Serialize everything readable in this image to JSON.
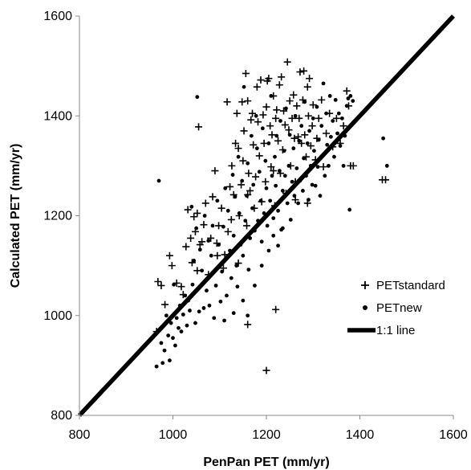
{
  "chart_data": {
    "type": "scatter",
    "xlabel": "PenPan PET (mm/yr)",
    "ylabel": "Calculated PET (mm/yr)",
    "xlim": [
      800,
      1600
    ],
    "ylim": [
      800,
      1600
    ],
    "x_ticks": [
      "800",
      "1000",
      "1200",
      "1400",
      "1600"
    ],
    "y_ticks": [
      "800",
      "1000",
      "1200",
      "1400",
      "1600"
    ],
    "grid": false,
    "legend_position": "bottom-right",
    "legend": [
      "PETstandard",
      "PETnew",
      "1:1 line"
    ],
    "series": [
      {
        "name": "PETstandard",
        "marker": "plus",
        "color": "#000000",
        "points": [
          [
            965,
            968
          ],
          [
            968,
            1068
          ],
          [
            975,
            1060
          ],
          [
            983,
            1022
          ],
          [
            993,
            1120
          ],
          [
            998,
            1100
          ],
          [
            1008,
            1065
          ],
          [
            1018,
            1058
          ],
          [
            1022,
            1042
          ],
          [
            1028,
            1138
          ],
          [
            1032,
            1212
          ],
          [
            1038,
            1155
          ],
          [
            1041,
            1106
          ],
          [
            1045,
            1198
          ],
          [
            1048,
            1168
          ],
          [
            1052,
            1205
          ],
          [
            1055,
            1378
          ],
          [
            1058,
            1142
          ],
          [
            1062,
            1148
          ],
          [
            1066,
            1182
          ],
          [
            1070,
            1225
          ],
          [
            1076,
            1082
          ],
          [
            1081,
            1155
          ],
          [
            1085,
            1238
          ],
          [
            1090,
            1290
          ],
          [
            1094,
            1145
          ],
          [
            1098,
            1180
          ],
          [
            1104,
            1215
          ],
          [
            1108,
            1095
          ],
          [
            1111,
            1122
          ],
          [
            1116,
            1428
          ],
          [
            1118,
            1168
          ],
          [
            1122,
            1258
          ],
          [
            1126,
            1300
          ],
          [
            1130,
            1242
          ],
          [
            1134,
            1345
          ],
          [
            1137,
            1405
          ],
          [
            1140,
            1335
          ],
          [
            1142,
            1200
          ],
          [
            1146,
            1262
          ],
          [
            1148,
            1428
          ],
          [
            1150,
            1310
          ],
          [
            1152,
            1370
          ],
          [
            1156,
            1485
          ],
          [
            1158,
            1180
          ],
          [
            1160,
            1430
          ],
          [
            1162,
            1285
          ],
          [
            1165,
            1250
          ],
          [
            1167,
            1392
          ],
          [
            1170,
            1405
          ],
          [
            1172,
            1342
          ],
          [
            1174,
            1215
          ],
          [
            1177,
            1278
          ],
          [
            1180,
            1458
          ],
          [
            1182,
            1388
          ],
          [
            1185,
            1320
          ],
          [
            1188,
            1472
          ],
          [
            1190,
            1228
          ],
          [
            1193,
            1402
          ],
          [
            1195,
            1345
          ],
          [
            1198,
            1268
          ],
          [
            1200,
            1418
          ],
          [
            1202,
            1470
          ],
          [
            1205,
            1475
          ],
          [
            1208,
            1380
          ],
          [
            1210,
            1298
          ],
          [
            1212,
            1362
          ],
          [
            1215,
            1440
          ],
          [
            1218,
            1220
          ],
          [
            1220,
            1395
          ],
          [
            1222,
            1412
          ],
          [
            1225,
            1350
          ],
          [
            1228,
            1462
          ],
          [
            1230,
            1285
          ],
          [
            1232,
            1478
          ],
          [
            1235,
            1332
          ],
          [
            1237,
            1410
          ],
          [
            1240,
            1382
          ],
          [
            1242,
            1245
          ],
          [
            1245,
            1508
          ],
          [
            1248,
            1372
          ],
          [
            1250,
            1430
          ],
          [
            1252,
            1300
          ],
          [
            1255,
            1395
          ],
          [
            1258,
            1442
          ],
          [
            1260,
            1355
          ],
          [
            1262,
            1268
          ],
          [
            1265,
            1420
          ],
          [
            1268,
            1358
          ],
          [
            1270,
            1395
          ],
          [
            1272,
            1488
          ],
          [
            1275,
            1345
          ],
          [
            1278,
            1432
          ],
          [
            1280,
            1490
          ],
          [
            1282,
            1362
          ],
          [
            1285,
            1318
          ],
          [
            1288,
            1458
          ],
          [
            1290,
            1400
          ],
          [
            1292,
            1475
          ],
          [
            1295,
            1340
          ],
          [
            1298,
            1380
          ],
          [
            1300,
            1422
          ],
          [
            1305,
            1312
          ],
          [
            1308,
            1355
          ],
          [
            1312,
            1395
          ],
          [
            1318,
            1432
          ],
          [
            1322,
            1298
          ],
          [
            1328,
            1365
          ],
          [
            1335,
            1405
          ],
          [
            1342,
            1338
          ],
          [
            1350,
            1395
          ],
          [
            1358,
            1345
          ],
          [
            1365,
            1380
          ],
          [
            1372,
            1450
          ],
          [
            1376,
            1420
          ],
          [
            1380,
            1300
          ],
          [
            1386,
            1300
          ],
          [
            1448,
            1272
          ],
          [
            1455,
            1272
          ],
          [
            1200,
            890
          ],
          [
            1220,
            1012
          ],
          [
            1160,
            982
          ],
          [
            1140,
            1105
          ],
          [
            1095,
            1120
          ],
          [
            1215,
            1290
          ],
          [
            1262,
            1232
          ],
          [
            1288,
            1225
          ],
          [
            1160,
            1242
          ],
          [
            1125,
            1192
          ],
          [
            1052,
            1090
          ]
        ]
      },
      {
        "name": "PETnew",
        "marker": "dot",
        "color": "#000000",
        "points": [
          [
            965,
            898
          ],
          [
            970,
            1270
          ],
          [
            975,
            945
          ],
          [
            978,
            905
          ],
          [
            982,
            930
          ],
          [
            986,
            1000
          ],
          [
            990,
            960
          ],
          [
            993,
            910
          ],
          [
            996,
            985
          ],
          [
            1000,
            955
          ],
          [
            1002,
            1062
          ],
          [
            1005,
            940
          ],
          [
            1008,
            995
          ],
          [
            1012,
            975
          ],
          [
            1015,
            1020
          ],
          [
            1018,
            968
          ],
          [
            1022,
            1002
          ],
          [
            1026,
            1040
          ],
          [
            1030,
            980
          ],
          [
            1033,
            1030
          ],
          [
            1036,
            1010
          ],
          [
            1040,
            1218
          ],
          [
            1042,
            1062
          ],
          [
            1045,
            1110
          ],
          [
            1048,
            985
          ],
          [
            1050,
            1175
          ],
          [
            1052,
            1438
          ],
          [
            1056,
            1008
          ],
          [
            1058,
            1132
          ],
          [
            1062,
            1090
          ],
          [
            1066,
            1015
          ],
          [
            1068,
            1200
          ],
          [
            1072,
            1050
          ],
          [
            1076,
            1150
          ],
          [
            1078,
            1020
          ],
          [
            1082,
            1120
          ],
          [
            1085,
            1180
          ],
          [
            1088,
            995
          ],
          [
            1092,
            1060
          ],
          [
            1095,
            1230
          ],
          [
            1098,
            1142
          ],
          [
            1102,
            1028
          ],
          [
            1105,
            1088
          ],
          [
            1108,
            1178
          ],
          [
            1112,
            1255
          ],
          [
            1115,
            1040
          ],
          [
            1118,
            1210
          ],
          [
            1122,
            1130
          ],
          [
            1125,
            1075
          ],
          [
            1128,
            1282
          ],
          [
            1130,
            1160
          ],
          [
            1133,
            1238
          ],
          [
            1136,
            1100
          ],
          [
            1138,
            1058
          ],
          [
            1140,
            1318
          ],
          [
            1142,
            1205
          ],
          [
            1145,
            1142
          ],
          [
            1148,
            1270
          ],
          [
            1150,
            1120
          ],
          [
            1152,
            1458
          ],
          [
            1155,
            1190
          ],
          [
            1158,
            1240
          ],
          [
            1160,
            1305
          ],
          [
            1162,
            1092
          ],
          [
            1165,
            1155
          ],
          [
            1168,
            1360
          ],
          [
            1170,
            1215
          ],
          [
            1172,
            1262
          ],
          [
            1175,
            1170
          ],
          [
            1178,
            1400
          ],
          [
            1180,
            1335
          ],
          [
            1182,
            1190
          ],
          [
            1185,
            1288
          ],
          [
            1188,
            1230
          ],
          [
            1190,
            1148
          ],
          [
            1192,
            1375
          ],
          [
            1195,
            1205
          ],
          [
            1198,
            1310
          ],
          [
            1200,
            1255
          ],
          [
            1202,
            1180
          ],
          [
            1205,
            1345
          ],
          [
            1208,
            1230
          ],
          [
            1210,
            1440
          ],
          [
            1212,
            1280
          ],
          [
            1215,
            1195
          ],
          [
            1218,
            1318
          ],
          [
            1220,
            1260
          ],
          [
            1222,
            1360
          ],
          [
            1225,
            1210
          ],
          [
            1228,
            1290
          ],
          [
            1230,
            1390
          ],
          [
            1232,
            1172
          ],
          [
            1235,
            1250
          ],
          [
            1238,
            1330
          ],
          [
            1240,
            1280
          ],
          [
            1242,
            1415
          ],
          [
            1245,
            1225
          ],
          [
            1248,
            1300
          ],
          [
            1250,
            1362
          ],
          [
            1252,
            1192
          ],
          [
            1255,
            1268
          ],
          [
            1258,
            1335
          ],
          [
            1260,
            1240
          ],
          [
            1262,
            1400
          ],
          [
            1265,
            1295
          ],
          [
            1268,
            1225
          ],
          [
            1270,
            1350
          ],
          [
            1272,
            1270
          ],
          [
            1275,
            1380
          ],
          [
            1278,
            1250
          ],
          [
            1280,
            1315
          ],
          [
            1282,
            1428
          ],
          [
            1285,
            1280
          ],
          [
            1288,
            1345
          ],
          [
            1290,
            1232
          ],
          [
            1292,
            1370
          ],
          [
            1295,
            1300
          ],
          [
            1298,
            1262
          ],
          [
            1300,
            1395
          ],
          [
            1302,
            1330
          ],
          [
            1305,
            1260
          ],
          [
            1308,
            1418
          ],
          [
            1310,
            1298
          ],
          [
            1312,
            1352
          ],
          [
            1315,
            1240
          ],
          [
            1318,
            1380
          ],
          [
            1320,
            1320
          ],
          [
            1322,
            1465
          ],
          [
            1325,
            1280
          ],
          [
            1328,
            1405
          ],
          [
            1330,
            1342
          ],
          [
            1333,
            1300
          ],
          [
            1336,
            1440
          ],
          [
            1338,
            1358
          ],
          [
            1342,
            1390
          ],
          [
            1345,
            1318
          ],
          [
            1348,
            1432
          ],
          [
            1352,
            1365
          ],
          [
            1355,
            1405
          ],
          [
            1358,
            1340
          ],
          [
            1362,
            1395
          ],
          [
            1365,
            1300
          ],
          [
            1368,
            1360
          ],
          [
            1372,
            1420
          ],
          [
            1375,
            1435
          ],
          [
            1378,
            1212
          ],
          [
            1380,
            1440
          ],
          [
            1385,
            1430
          ],
          [
            1450,
            1355
          ],
          [
            1458,
            1300
          ],
          [
            1110,
            990
          ],
          [
            1130,
            1005
          ],
          [
            1150,
            1030
          ],
          [
            1160,
            1000
          ],
          [
            1175,
            1060
          ],
          [
            1190,
            1100
          ],
          [
            1205,
            1130
          ],
          [
            1215,
            1160
          ],
          [
            1225,
            1140
          ],
          [
            1235,
            1175
          ]
        ]
      },
      {
        "name": "1:1 line",
        "type": "line",
        "color": "#000000",
        "x": [
          800,
          1600
        ],
        "y": [
          800,
          1600
        ]
      }
    ]
  }
}
